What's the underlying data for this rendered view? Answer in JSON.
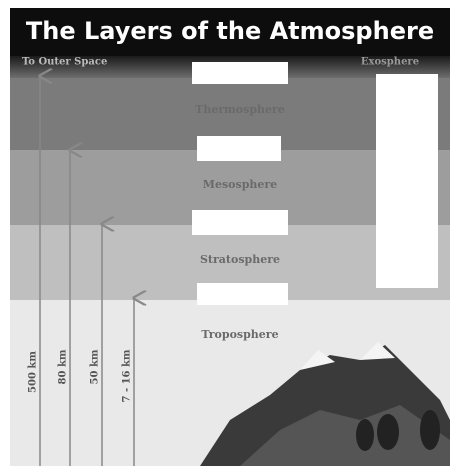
{
  "title": "The Layers of the Atmosphere",
  "top_labels": {
    "left": "To Outer Space",
    "right": "Exosphere"
  },
  "layers": [
    "Thermosphere",
    "Mesosphere",
    "Stratosphere",
    "Troposphere"
  ],
  "heights": [
    "500 km",
    "80 km",
    "50 km",
    "7 - 16 km"
  ]
}
